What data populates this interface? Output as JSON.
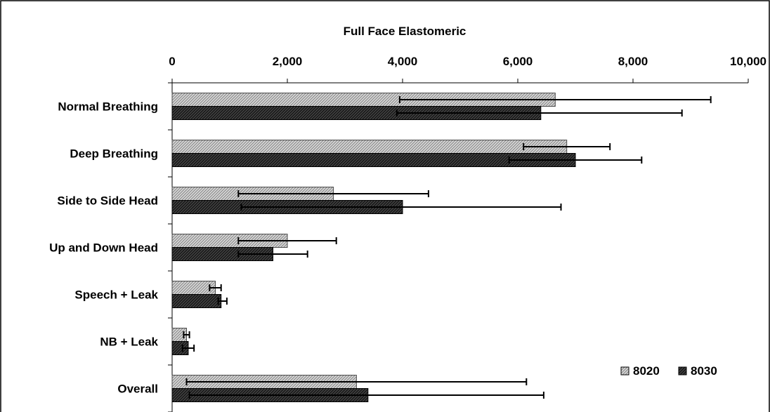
{
  "chart_data": {
    "type": "bar",
    "orientation": "horizontal",
    "title": "Full Face Elastomeric",
    "xlabel": "",
    "ylabel": "",
    "xlim": [
      0,
      10000
    ],
    "x_axis_position": "top",
    "x_ticks": [
      0,
      2000,
      4000,
      6000,
      8000,
      10000
    ],
    "x_tick_labels": [
      "0",
      "2,000",
      "4,000",
      "6,000",
      "8,000",
      "10,000"
    ],
    "grid": false,
    "legend_position": "bottom-right",
    "categories": [
      "Normal Breathing",
      "Deep Breathing",
      "Side to Side Head",
      "Up and Down Head",
      "Speech + Leak",
      "NB + Leak",
      "Overall"
    ],
    "series": [
      {
        "name": "8020",
        "pattern": "hatched",
        "color": "#bfbfbf",
        "values": [
          6650,
          6850,
          2800,
          2000,
          750,
          250,
          3200
        ],
        "error_low": [
          3950,
          6100,
          1150,
          1150,
          650,
          200,
          250
        ],
        "error_high": [
          9350,
          7600,
          4450,
          2850,
          850,
          300,
          6150
        ]
      },
      {
        "name": "8030",
        "pattern": "dark",
        "color": "#262626",
        "values": [
          6400,
          7000,
          4000,
          1750,
          850,
          280,
          3400
        ],
        "error_low": [
          3900,
          5850,
          1200,
          1150,
          800,
          180,
          300
        ],
        "error_high": [
          8850,
          8150,
          6750,
          2350,
          950,
          380,
          6450
        ]
      }
    ]
  }
}
